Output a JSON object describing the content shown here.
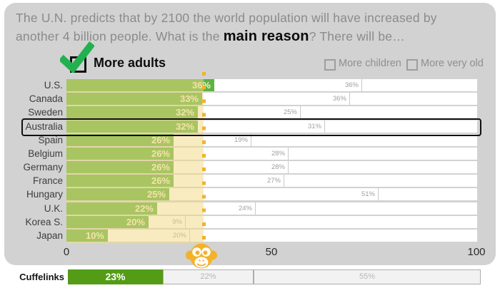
{
  "title": {
    "line1": "The U.N. predicts that by 2100 the world population will have increased by",
    "line2_prefix": "another 4 billion people. What is the ",
    "line2_bold": "main reason",
    "line2_suffix": "? There will be…"
  },
  "legend": {
    "selected_option": {
      "label": "More adults",
      "checked": true
    },
    "other_options": [
      {
        "label": "More children",
        "checked": false
      },
      {
        "label": "More very old",
        "checked": false
      }
    ]
  },
  "chart_data": {
    "type": "stacked-bar-horizontal",
    "series_names": [
      "More adults",
      "More children",
      "More very old (unlabeled remainder to 100%)"
    ],
    "x_axis": {
      "ticks": [
        "0",
        "50",
        "100"
      ],
      "min": 0,
      "max": 100
    },
    "reference_line_pct": 33.4,
    "rows": [
      {
        "country": "U.S.",
        "adults": 36,
        "adults_label": "36%",
        "children": 36,
        "children_label": "36%",
        "highlight": false
      },
      {
        "country": "Canada",
        "adults": 33,
        "adults_label": "33%",
        "children": 36,
        "children_label": "36%",
        "highlight": false
      },
      {
        "country": "Sweden",
        "adults": 32,
        "adults_label": "32%",
        "children": 25,
        "children_label": "25%",
        "highlight": false
      },
      {
        "country": "Australia",
        "adults": 32,
        "adults_label": "32%",
        "children": 31,
        "children_label": "31%",
        "highlight": true
      },
      {
        "country": "Spain",
        "adults": 26,
        "adults_label": "26%",
        "children": 19,
        "children_label": "19%",
        "highlight": false
      },
      {
        "country": "Belgium",
        "adults": 26,
        "adults_label": "26%",
        "children": 28,
        "children_label": "28%",
        "highlight": false
      },
      {
        "country": "Germany",
        "adults": 26,
        "adults_label": "26%",
        "children": 28,
        "children_label": "28%",
        "highlight": false
      },
      {
        "country": "France",
        "adults": 26,
        "adults_label": "26%",
        "children": 27,
        "children_label": "27%",
        "highlight": false
      },
      {
        "country": "Hungary",
        "adults": 25,
        "adults_label": "25%",
        "children": 51,
        "children_label": "51%",
        "highlight": false
      },
      {
        "country": "U.K.",
        "adults": 22,
        "adults_label": "22%",
        "children": 24,
        "children_label": "24%",
        "highlight": false
      },
      {
        "country": "Korea S.",
        "adults": 20,
        "adults_label": "20%",
        "children": 9,
        "children_label": "9%",
        "highlight": false
      },
      {
        "country": "Japan",
        "adults": 10,
        "adults_label": "10%",
        "children": 20,
        "children_label": "20%",
        "highlight": false
      }
    ],
    "benchmark_row": {
      "label": "Cuffelinks",
      "segments": [
        {
          "kind": "more-adults",
          "pct": 23,
          "value_label": "23%"
        },
        {
          "kind": "more-children",
          "pct": 22,
          "value_label": "22%"
        },
        {
          "kind": "more-very-old",
          "pct": 55,
          "value_label": "55%"
        }
      ]
    }
  },
  "icons": {
    "checkmark": "green-checkmark-icon",
    "monkey": "monkey-face-icon"
  },
  "colors": {
    "bar_green": "#5cb342",
    "footer_green": "#549c16",
    "band_overlay": "rgba(243,216,130,0.5)",
    "dotted_line": "#f1b32c",
    "card_bg": "#d2d2d2",
    "check_green": "#21b14e",
    "monkey_yellow": "#f3b229"
  }
}
